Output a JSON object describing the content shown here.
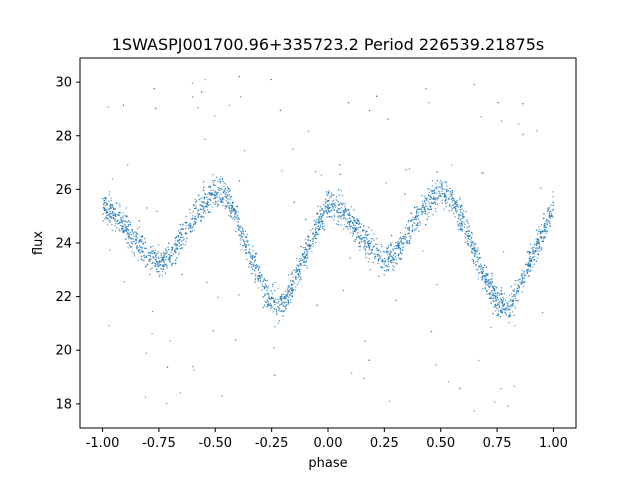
{
  "chart_data": {
    "type": "scatter",
    "title": "1SWASPJ001700.96+335723.2 Period 226539.21875s",
    "xlabel": "phase",
    "ylabel": "flux",
    "xlim": [
      -1.1,
      1.1
    ],
    "ylim": [
      17.1,
      30.9
    ],
    "xticks": [
      "-1.00",
      "-0.75",
      "-0.50",
      "-0.25",
      "0.00",
      "0.25",
      "0.50",
      "0.75",
      "1.00"
    ],
    "yticks": [
      "18",
      "20",
      "22",
      "24",
      "26",
      "28",
      "30"
    ],
    "grid": false,
    "legend": "none",
    "marker_color": "#1f77b4",
    "light_curve": {
      "description_series": "phase-folded flux",
      "phase": [
        -1.0,
        -0.95,
        -0.9,
        -0.85,
        -0.8,
        -0.75,
        -0.7,
        -0.65,
        -0.6,
        -0.55,
        -0.5,
        -0.45,
        -0.4,
        -0.35,
        -0.3,
        -0.25,
        -0.2,
        -0.15,
        -0.1,
        -0.05,
        0.0,
        0.05,
        0.1,
        0.15,
        0.2,
        0.25,
        0.3,
        0.35,
        0.4,
        0.45,
        0.5,
        0.55,
        0.6,
        0.65,
        0.7,
        0.75,
        0.8,
        0.85,
        0.9,
        0.95,
        1.0
      ],
      "flux": [
        25.4,
        25.1,
        24.6,
        24.0,
        23.6,
        23.2,
        23.5,
        24.2,
        24.9,
        25.5,
        25.9,
        25.8,
        24.8,
        23.6,
        22.6,
        21.8,
        21.7,
        22.6,
        23.6,
        24.6,
        25.4,
        25.3,
        24.8,
        24.3,
        23.8,
        23.4,
        23.6,
        24.3,
        25.0,
        25.6,
        25.9,
        25.7,
        24.8,
        23.6,
        22.6,
        21.8,
        21.6,
        22.4,
        23.4,
        24.3,
        25.3
      ],
      "scatter_width": 0.55
    }
  }
}
